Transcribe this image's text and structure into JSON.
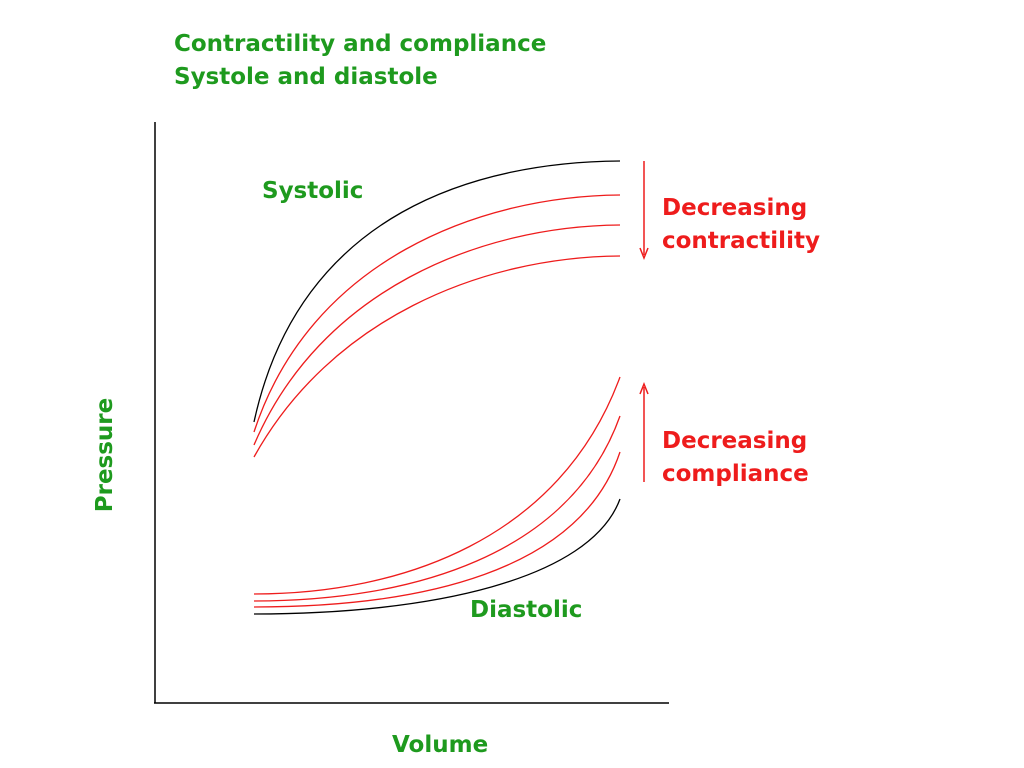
{
  "title": {
    "line1": "Contractility and compliance",
    "line2": "Systole and diastole"
  },
  "axes": {
    "x_label": "Volume",
    "y_label": "Pressure"
  },
  "labels": {
    "systolic": "Systolic",
    "diastolic": "Diastolic",
    "contractility_line1": "Decreasing",
    "contractility_line2": "contractility",
    "compliance_line1": "Decreasing",
    "compliance_line2": "compliance"
  },
  "colors": {
    "title_text": "#1e9a1e",
    "annotation_text": "#ee1c1c",
    "baseline_curve": "#000000",
    "shifted_curves": "#ee1c1c",
    "axes": "#000000"
  },
  "arrows": {
    "contractility": "down",
    "compliance": "up"
  }
}
